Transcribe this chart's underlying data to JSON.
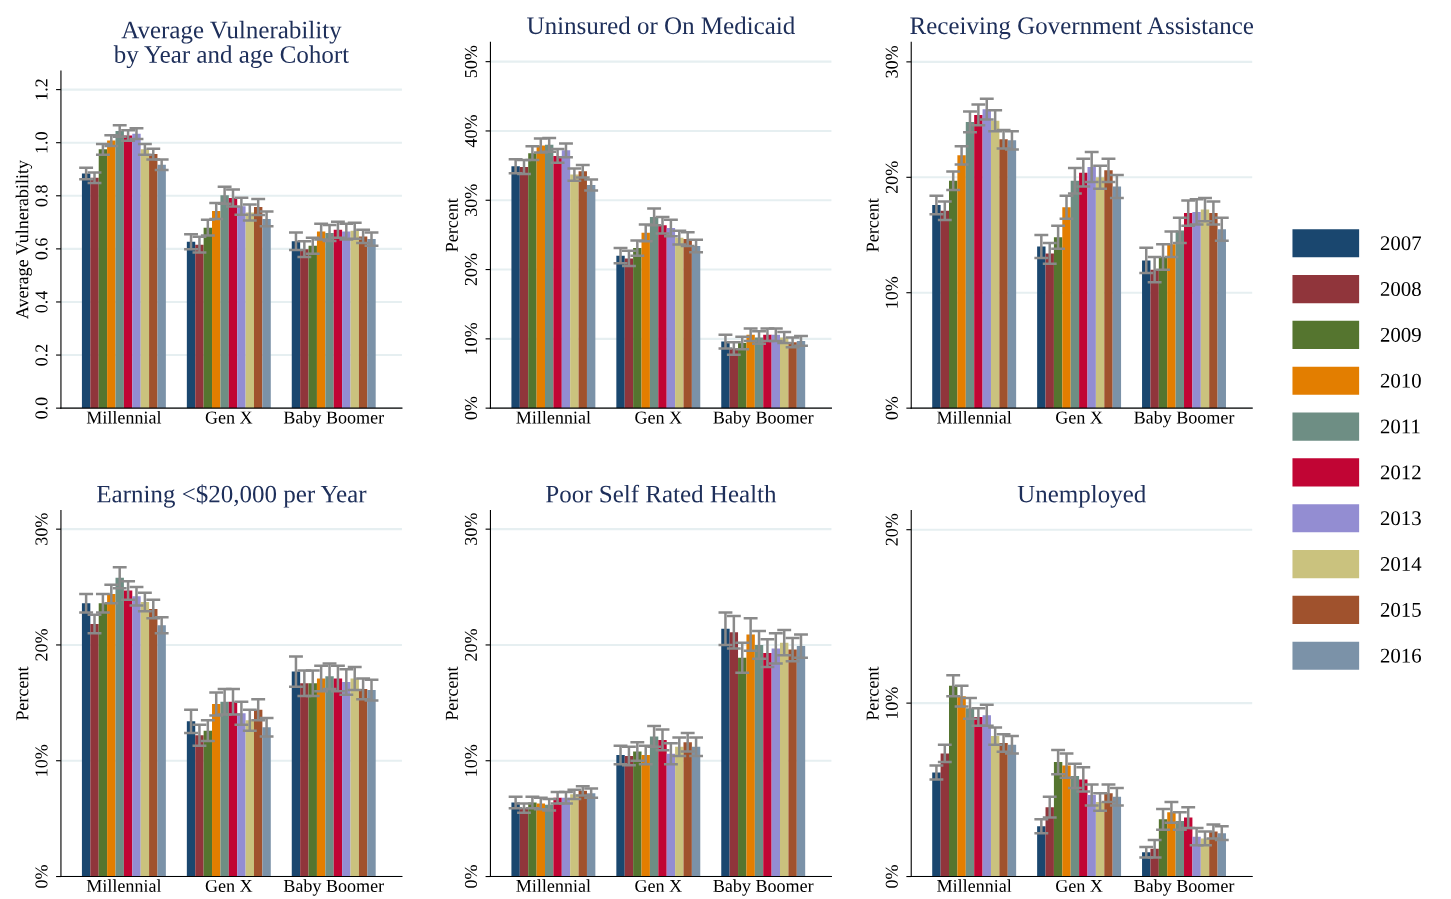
{
  "chart_data": [
    {
      "type": "bar",
      "title": "Average Vulnerability\nby Year and age Cohort",
      "ylabel": "Average Vulnerability",
      "categories": [
        "Millennial",
        "Gen X",
        "Baby Boomer"
      ],
      "ylim": [
        0,
        1.27
      ],
      "yticks": [
        {
          "value": 0,
          "label": "0.0"
        },
        0.2,
        0.4,
        0.6,
        0.8,
        {
          "value": 1,
          "label": "1.0"
        },
        1.2
      ],
      "grid": "y",
      "legend": "right",
      "series": [
        {
          "name": "2007",
          "color": "#1a476f",
          "values": [
            0.884,
            0.627,
            0.629
          ],
          "errors": [
            0.022,
            0.028,
            0.033
          ]
        },
        {
          "name": "2008",
          "color": "#90353b",
          "values": [
            0.868,
            0.616,
            0.599
          ],
          "errors": [
            0.02,
            0.03,
            0.03
          ]
        },
        {
          "name": "2009",
          "color": "#55752f",
          "values": [
            0.975,
            0.68,
            0.612
          ],
          "errors": [
            0.02,
            0.03,
            0.03
          ]
        },
        {
          "name": "2010",
          "color": "#e37e00",
          "values": [
            1.008,
            0.743,
            0.665
          ],
          "errors": [
            0.02,
            0.03,
            0.03
          ]
        },
        {
          "name": "2011",
          "color": "#6e8e84",
          "values": [
            1.044,
            0.802,
            0.66
          ],
          "errors": [
            0.022,
            0.032,
            0.03
          ]
        },
        {
          "name": "2012",
          "color": "#c10534",
          "values": [
            1.027,
            0.792,
            0.672
          ],
          "errors": [
            0.02,
            0.032,
            0.03
          ]
        },
        {
          "name": "2013",
          "color": "#938dd2",
          "values": [
            1.034,
            0.761,
            0.665
          ],
          "errors": [
            0.02,
            0.032,
            0.03
          ]
        },
        {
          "name": "2014",
          "color": "#cac27e",
          "values": [
            0.975,
            0.737,
            0.668
          ],
          "errors": [
            0.02,
            0.03,
            0.03
          ]
        },
        {
          "name": "2015",
          "color": "#a0522d",
          "values": [
            0.957,
            0.758,
            0.647
          ],
          "errors": [
            0.02,
            0.03,
            0.025
          ]
        },
        {
          "name": "2016",
          "color": "#7b92a8",
          "values": [
            0.917,
            0.713,
            0.637
          ],
          "errors": [
            0.02,
            0.028,
            0.025
          ]
        }
      ]
    },
    {
      "type": "bar",
      "title": "Uninsured or On Medicaid",
      "ylabel": "Percent",
      "categories": [
        "Millennial",
        "Gen X",
        "Baby Boomer"
      ],
      "ylim": [
        0,
        52.8
      ],
      "yticks": [
        {
          "value": 0,
          "label": "0%"
        },
        {
          "value": 10,
          "label": "10%"
        },
        {
          "value": 20,
          "label": "20%"
        },
        {
          "value": 30,
          "label": "30%"
        },
        {
          "value": 40,
          "label": "40%"
        },
        {
          "value": 50,
          "label": "50%"
        }
      ],
      "grid": "y",
      "series": [
        {
          "name": "2007",
          "color": "#1a476f",
          "values": [
            34.9,
            22.0,
            9.6
          ],
          "errors": [
            1.0,
            1.1,
            1.0
          ]
        },
        {
          "name": "2008",
          "color": "#90353b",
          "values": [
            34.8,
            21.6,
            8.6
          ],
          "errors": [
            1.0,
            1.1,
            0.9
          ]
        },
        {
          "name": "2009",
          "color": "#55752f",
          "values": [
            36.8,
            23.1,
            9.4
          ],
          "errors": [
            1.0,
            1.1,
            0.9
          ]
        },
        {
          "name": "2010",
          "color": "#e37e00",
          "values": [
            37.9,
            25.3,
            10.6
          ],
          "errors": [
            1.0,
            1.2,
            0.9
          ]
        },
        {
          "name": "2011",
          "color": "#6e8e84",
          "values": [
            38.0,
            27.6,
            10.2
          ],
          "errors": [
            1.0,
            1.2,
            0.9
          ]
        },
        {
          "name": "2012",
          "color": "#c10534",
          "values": [
            36.4,
            26.4,
            10.6
          ],
          "errors": [
            1.0,
            1.2,
            0.9
          ]
        },
        {
          "name": "2013",
          "color": "#938dd2",
          "values": [
            37.2,
            26.0,
            10.6
          ],
          "errors": [
            1.0,
            1.2,
            0.9
          ]
        },
        {
          "name": "2014",
          "color": "#cac27e",
          "values": [
            33.7,
            24.6,
            10.2
          ],
          "errors": [
            0.9,
            1.0,
            0.8
          ]
        },
        {
          "name": "2015",
          "color": "#a0522d",
          "values": [
            34.2,
            24.4,
            9.5
          ],
          "errors": [
            0.9,
            1.0,
            0.7
          ]
        },
        {
          "name": "2016",
          "color": "#7b92a8",
          "values": [
            32.2,
            23.4,
            9.7
          ],
          "errors": [
            0.8,
            0.9,
            0.7
          ]
        }
      ]
    },
    {
      "type": "bar",
      "title": "Receiving Government Assistance",
      "ylabel": "Percent",
      "categories": [
        "Millennial",
        "Gen X",
        "Baby Boomer"
      ],
      "ylim": [
        0,
        31.7
      ],
      "yticks": [
        {
          "value": 0,
          "label": "0%"
        },
        {
          "value": 10,
          "label": "10%"
        },
        {
          "value": 20,
          "label": "20%"
        },
        {
          "value": 30,
          "label": "30%"
        }
      ],
      "grid": "y",
      "series": [
        {
          "name": "2007",
          "color": "#1a476f",
          "values": [
            17.6,
            14.0,
            12.8
          ],
          "errors": [
            0.8,
            1.0,
            1.1
          ]
        },
        {
          "name": "2008",
          "color": "#90353b",
          "values": [
            17.1,
            13.4,
            12.0
          ],
          "errors": [
            0.8,
            0.9,
            1.1
          ]
        },
        {
          "name": "2009",
          "color": "#55752f",
          "values": [
            19.7,
            14.8,
            13.1
          ],
          "errors": [
            0.8,
            1.0,
            1.1
          ]
        },
        {
          "name": "2010",
          "color": "#e37e00",
          "values": [
            21.9,
            17.4,
            14.2
          ],
          "errors": [
            0.8,
            1.0,
            1.1
          ]
        },
        {
          "name": "2011",
          "color": "#6e8e84",
          "values": [
            24.8,
            19.7,
            15.4
          ],
          "errors": [
            0.9,
            1.1,
            1.1
          ]
        },
        {
          "name": "2012",
          "color": "#c10534",
          "values": [
            25.4,
            20.4,
            16.9
          ],
          "errors": [
            0.9,
            1.2,
            1.1
          ]
        },
        {
          "name": "2013",
          "color": "#938dd2",
          "values": [
            25.9,
            20.9,
            17.0
          ],
          "errors": [
            0.9,
            1.3,
            1.1
          ]
        },
        {
          "name": "2014",
          "color": "#cac27e",
          "values": [
            24.9,
            20.0,
            17.2
          ],
          "errors": [
            0.9,
            1.0,
            1.0
          ]
        },
        {
          "name": "2015",
          "color": "#a0522d",
          "values": [
            23.3,
            20.6,
            16.9
          ],
          "errors": [
            0.8,
            1.0,
            1.0
          ]
        },
        {
          "name": "2016",
          "color": "#7b92a8",
          "values": [
            23.2,
            19.2,
            15.5
          ],
          "errors": [
            0.8,
            1.0,
            1.0
          ]
        }
      ]
    },
    {
      "type": "bar",
      "title": "Earning <$20,000 per Year",
      "ylabel": "Percent",
      "categories": [
        "Millennial",
        "Gen X",
        "Baby Boomer"
      ],
      "ylim": [
        0,
        31.6
      ],
      "yticks": [
        {
          "value": 0,
          "label": "0%"
        },
        {
          "value": 10,
          "label": "10%"
        },
        {
          "value": 20,
          "label": "20%"
        },
        {
          "value": 30,
          "label": "30%"
        }
      ],
      "grid": "y",
      "series": [
        {
          "name": "2007",
          "color": "#1a476f",
          "values": [
            23.6,
            13.4,
            17.7
          ],
          "errors": [
            0.8,
            1.0,
            1.3
          ]
        },
        {
          "name": "2008",
          "color": "#90353b",
          "values": [
            21.8,
            12.2,
            16.7
          ],
          "errors": [
            0.8,
            0.9,
            1.1
          ]
        },
        {
          "name": "2009",
          "color": "#55752f",
          "values": [
            23.6,
            12.6,
            16.7
          ],
          "errors": [
            0.8,
            0.9,
            1.1
          ]
        },
        {
          "name": "2010",
          "color": "#e37e00",
          "values": [
            24.4,
            14.9,
            17.1
          ],
          "errors": [
            0.8,
            1.0,
            1.1
          ]
        },
        {
          "name": "2011",
          "color": "#6e8e84",
          "values": [
            25.8,
            15.1,
            17.3
          ],
          "errors": [
            0.9,
            1.1,
            1.1
          ]
        },
        {
          "name": "2012",
          "color": "#c10534",
          "values": [
            24.7,
            15.1,
            17.1
          ],
          "errors": [
            0.8,
            1.1,
            1.1
          ]
        },
        {
          "name": "2013",
          "color": "#938dd2",
          "values": [
            24.2,
            14.1,
            16.8
          ],
          "errors": [
            0.8,
            1.0,
            1.1
          ]
        },
        {
          "name": "2014",
          "color": "#cac27e",
          "values": [
            23.7,
            13.5,
            17.1
          ],
          "errors": [
            0.8,
            0.9,
            1.0
          ]
        },
        {
          "name": "2015",
          "color": "#a0522d",
          "values": [
            23.1,
            14.4,
            16.2
          ],
          "errors": [
            0.8,
            0.9,
            0.9
          ]
        },
        {
          "name": "2016",
          "color": "#7b92a8",
          "values": [
            21.7,
            12.9,
            16.1
          ],
          "errors": [
            0.7,
            0.8,
            0.9
          ]
        }
      ]
    },
    {
      "type": "bar",
      "title": "Poor Self Rated Health",
      "ylabel": "Percent",
      "categories": [
        "Millennial",
        "Gen X",
        "Baby Boomer"
      ],
      "ylim": [
        0,
        31.6
      ],
      "yticks": [
        {
          "value": 0,
          "label": "0%"
        },
        {
          "value": 10,
          "label": "10%"
        },
        {
          "value": 20,
          "label": "20%"
        },
        {
          "value": 30,
          "label": "30%"
        }
      ],
      "grid": "y",
      "series": [
        {
          "name": "2007",
          "color": "#1a476f",
          "values": [
            6.4,
            10.5,
            21.4
          ],
          "errors": [
            0.5,
            0.8,
            1.4
          ]
        },
        {
          "name": "2008",
          "color": "#90353b",
          "values": [
            5.9,
            10.4,
            21.1
          ],
          "errors": [
            0.4,
            0.8,
            1.4
          ]
        },
        {
          "name": "2009",
          "color": "#55752f",
          "values": [
            6.4,
            10.8,
            18.9
          ],
          "errors": [
            0.5,
            0.8,
            1.3
          ]
        },
        {
          "name": "2010",
          "color": "#e37e00",
          "values": [
            6.3,
            10.5,
            20.9
          ],
          "errors": [
            0.5,
            0.8,
            1.4
          ]
        },
        {
          "name": "2011",
          "color": "#6e8e84",
          "values": [
            6.2,
            12.1,
            20.0
          ],
          "errors": [
            0.5,
            0.9,
            1.2
          ]
        },
        {
          "name": "2012",
          "color": "#c10534",
          "values": [
            6.8,
            11.8,
            19.3
          ],
          "errors": [
            0.5,
            0.9,
            1.2
          ]
        },
        {
          "name": "2013",
          "color": "#938dd2",
          "values": [
            6.8,
            10.6,
            19.7
          ],
          "errors": [
            0.5,
            0.9,
            1.3
          ]
        },
        {
          "name": "2014",
          "color": "#cac27e",
          "values": [
            7.1,
            11.2,
            20.2
          ],
          "errors": [
            0.4,
            0.8,
            1.1
          ]
        },
        {
          "name": "2015",
          "color": "#a0522d",
          "values": [
            7.4,
            11.6,
            19.6
          ],
          "errors": [
            0.4,
            0.8,
            1.0
          ]
        },
        {
          "name": "2016",
          "color": "#7b92a8",
          "values": [
            7.2,
            11.2,
            19.9
          ],
          "errors": [
            0.4,
            0.8,
            1.0
          ]
        }
      ]
    },
    {
      "type": "bar",
      "title": "Unemployed",
      "ylabel": "Percent",
      "categories": [
        "Millennial",
        "Gen X",
        "Baby Boomer"
      ],
      "ylim": [
        0,
        21.1
      ],
      "yticks": [
        {
          "value": 0,
          "label": "0%"
        },
        {
          "value": 10,
          "label": "10%"
        },
        {
          "value": 20,
          "label": "20%"
        }
      ],
      "grid": "y",
      "series": [
        {
          "name": "2007",
          "color": "#1a476f",
          "values": [
            6.0,
            2.9,
            1.4
          ],
          "errors": [
            0.4,
            0.4,
            0.3
          ]
        },
        {
          "name": "2008",
          "color": "#90353b",
          "values": [
            7.1,
            4.0,
            1.6
          ],
          "errors": [
            0.5,
            0.6,
            0.5
          ]
        },
        {
          "name": "2009",
          "color": "#55752f",
          "values": [
            11.0,
            6.6,
            3.3
          ],
          "errors": [
            0.6,
            0.7,
            0.6
          ]
        },
        {
          "name": "2010",
          "color": "#e37e00",
          "values": [
            10.4,
            6.4,
            3.7
          ],
          "errors": [
            0.6,
            0.7,
            0.6
          ]
        },
        {
          "name": "2011",
          "color": "#6e8e84",
          "values": [
            9.7,
            5.8,
            3.2
          ],
          "errors": [
            0.6,
            0.7,
            0.5
          ]
        },
        {
          "name": "2012",
          "color": "#c10534",
          "values": [
            9.2,
            5.6,
            3.4
          ],
          "errors": [
            0.5,
            0.7,
            0.6
          ]
        },
        {
          "name": "2013",
          "color": "#938dd2",
          "values": [
            9.3,
            4.7,
            2.3
          ],
          "errors": [
            0.6,
            0.6,
            0.5
          ]
        },
        {
          "name": "2014",
          "color": "#cac27e",
          "values": [
            8.1,
            4.3,
            2.2
          ],
          "errors": [
            0.5,
            0.5,
            0.4
          ]
        },
        {
          "name": "2015",
          "color": "#a0522d",
          "values": [
            7.7,
            4.8,
            2.6
          ],
          "errors": [
            0.5,
            0.5,
            0.4
          ]
        },
        {
          "name": "2016",
          "color": "#7b92a8",
          "values": [
            7.6,
            4.6,
            2.5
          ],
          "errors": [
            0.5,
            0.5,
            0.4
          ]
        }
      ]
    }
  ]
}
